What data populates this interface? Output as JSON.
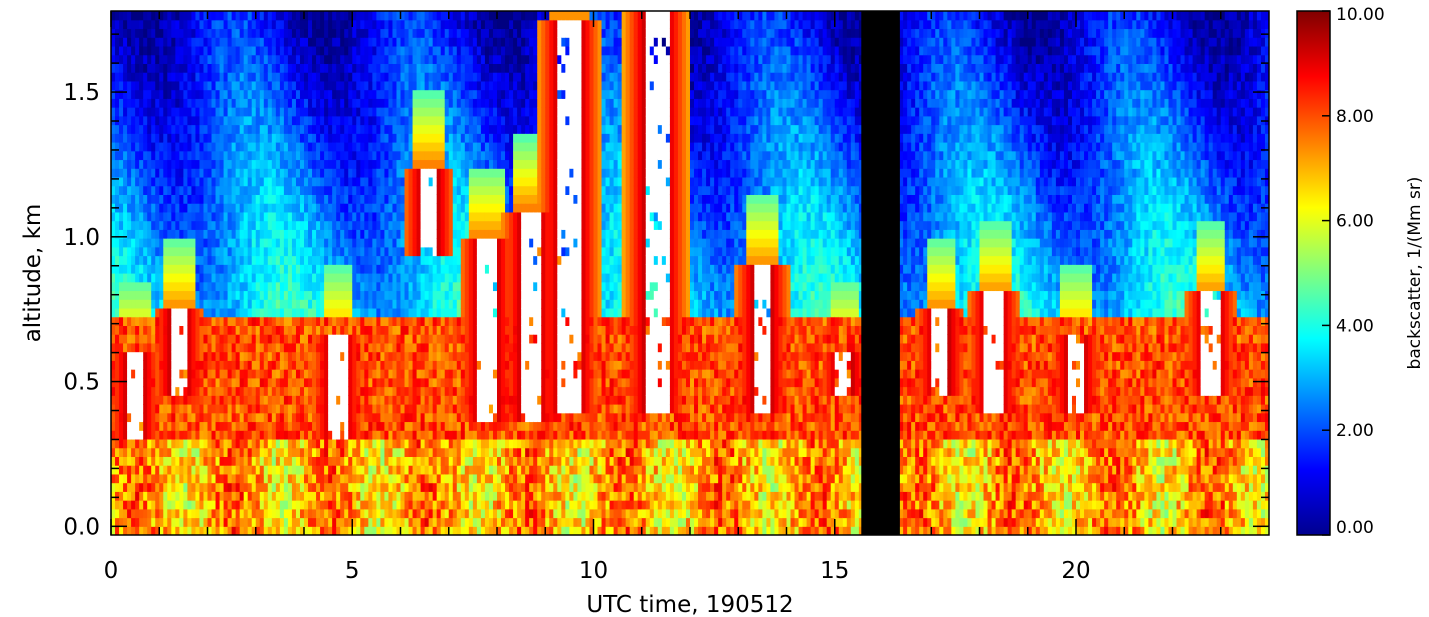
{
  "chart_data": {
    "type": "heatmap",
    "title": "",
    "xlabel": "UTC time, 190512",
    "ylabel": "altitude, km",
    "x_range": [
      0,
      24
    ],
    "y_range": [
      -0.03,
      1.78
    ],
    "x_ticks": [
      0,
      5,
      10,
      15,
      20
    ],
    "x_tick_labels": [
      "0",
      "5",
      "10",
      "15",
      "20"
    ],
    "y_ticks": [
      0.0,
      0.5,
      1.0,
      1.5
    ],
    "y_tick_labels": [
      "0.0",
      "0.5",
      "1.0",
      "1.5"
    ],
    "colorbar": {
      "label": "backscatter, 1/(Mm sr)",
      "range": [
        0,
        10
      ],
      "ticks": [
        0,
        2,
        4,
        6,
        8,
        10
      ],
      "tick_labels": [
        "0.00",
        "2.00",
        "4.00",
        "6.00",
        "8.00",
        "10.00"
      ],
      "colormap": "jet",
      "over_range_color": "#ffffff"
    },
    "missing_data": {
      "x_start": 15.55,
      "x_end": 16.35,
      "color": "#000000"
    },
    "features": {
      "surface_layer": {
        "top_km": 0.3,
        "backscatter": 7.0
      },
      "boundary_layer_top_km": 0.72,
      "free_troposphere_backscatter": 3.5,
      "upper_level_backscatter": 1.5,
      "saturated_plumes": [
        {
          "x_center": 0.5,
          "bottom_km": 0.3,
          "top_km": 0.6
        },
        {
          "x_center": 1.4,
          "bottom_km": 0.45,
          "top_km": 0.75
        },
        {
          "x_center": 4.7,
          "bottom_km": 0.3,
          "top_km": 0.65
        },
        {
          "x_center": 6.6,
          "bottom_km": 0.95,
          "top_km": 1.25
        },
        {
          "x_center": 7.8,
          "bottom_km": 0.35,
          "top_km": 1.0
        },
        {
          "x_center": 8.7,
          "bottom_km": 0.35,
          "top_km": 1.1
        },
        {
          "x_center": 9.5,
          "bottom_km": 0.4,
          "top_km": 1.75
        },
        {
          "x_center": 11.3,
          "bottom_km": 0.4,
          "top_km": 1.78
        },
        {
          "x_center": 13.5,
          "bottom_km": 0.4,
          "top_km": 0.9
        },
        {
          "x_center": 15.2,
          "bottom_km": 0.45,
          "top_km": 0.6
        },
        {
          "x_center": 17.2,
          "bottom_km": 0.45,
          "top_km": 0.75
        },
        {
          "x_center": 18.3,
          "bottom_km": 0.4,
          "top_km": 0.8
        },
        {
          "x_center": 20.0,
          "bottom_km": 0.4,
          "top_km": 0.65
        },
        {
          "x_center": 22.8,
          "bottom_km": 0.45,
          "top_km": 0.8
        }
      ]
    }
  }
}
